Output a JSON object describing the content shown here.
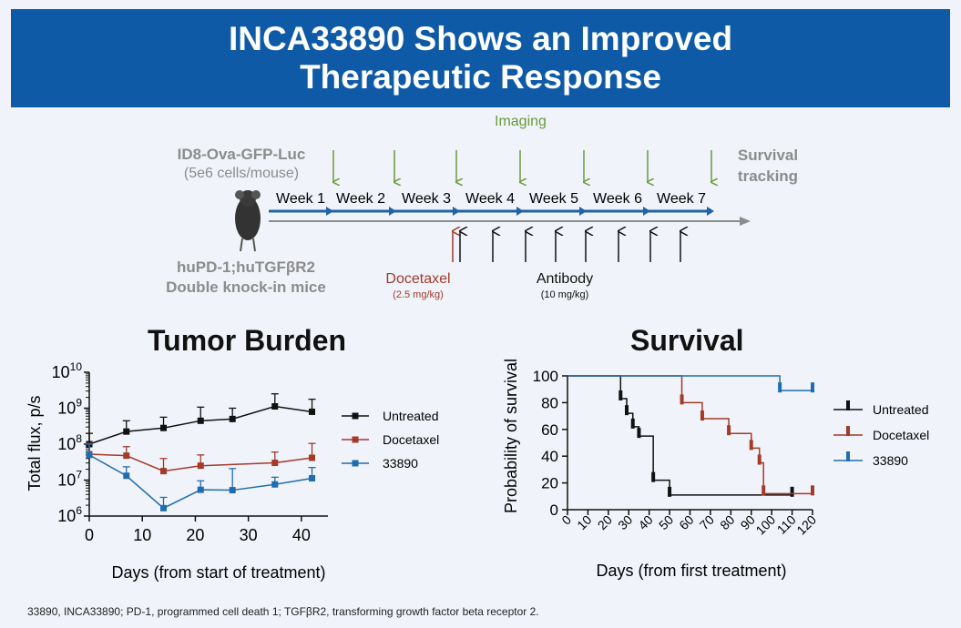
{
  "banner": {
    "line1": "INCA33890 Shows an Improved",
    "line2": "Therapeutic Response"
  },
  "schema": {
    "imaging_label": "Imaging",
    "cell_line": "ID8-Ova-GFP-Luc",
    "cell_dose": "(5e6 cells/mouse)",
    "survival_tracking_1": "Survival",
    "survival_tracking_2": "tracking",
    "mouse_model_1": "huPD-1;huTGFβR2",
    "mouse_model_2": "Double knock-in mice",
    "weeks": [
      "Week 1",
      "Week 2",
      "Week 3",
      "Week 4",
      "Week 5",
      "Week 6",
      "Week 7"
    ],
    "docetaxel_label": "Docetaxel",
    "docetaxel_dose": "(2.5 mg/kg)",
    "antibody_label": "Antibody",
    "antibody_dose": "(10 mg/kg)",
    "colors": {
      "imaging": "#6a9a3a",
      "timeline": "#1f63a8",
      "docetaxel": "#a33a2a",
      "grey": "#8c8c8c"
    }
  },
  "chart_data": [
    {
      "type": "line",
      "title": "Tumor Burden",
      "xlabel": "Days (from start of treatment)",
      "ylabel": "Total flux, p/s",
      "yscale": "log",
      "xlim": [
        0,
        45
      ],
      "ylim_exp": [
        6,
        10
      ],
      "xticks": [
        "0",
        "10",
        "20",
        "30",
        "40"
      ],
      "yticks": [
        {
          "base": "10",
          "exp": "6"
        },
        {
          "base": "10",
          "exp": "7"
        },
        {
          "base": "10",
          "exp": "8"
        },
        {
          "base": "10",
          "exp": "9"
        },
        {
          "base": "10",
          "exp": "10"
        }
      ],
      "legend": [
        "Untreated",
        "Docetaxel",
        "33890"
      ],
      "series": [
        {
          "name": "Untreated",
          "color": "#111111",
          "marker": "square",
          "x": [
            0,
            7,
            14,
            21,
            27,
            35,
            42
          ],
          "y_exp": [
            8.0,
            8.35,
            8.45,
            8.65,
            8.7,
            9.05,
            8.9
          ],
          "err_exp": [
            0.3,
            0.3,
            0.3,
            0.38,
            0.3,
            0.35,
            0.35
          ]
        },
        {
          "name": "Docetaxel",
          "color": "#a33a2a",
          "marker": "square",
          "x": [
            0,
            7,
            14,
            21,
            35,
            42
          ],
          "y_exp": [
            7.72,
            7.68,
            7.25,
            7.4,
            7.48,
            7.62
          ],
          "err_exp": [
            0.3,
            0.25,
            0.35,
            0.3,
            0.3,
            0.4
          ]
        },
        {
          "name": "33890",
          "color": "#1f6db0",
          "marker": "square",
          "x": [
            0,
            7,
            14,
            21,
            27,
            35,
            42
          ],
          "y_exp": [
            7.7,
            7.12,
            6.22,
            6.73,
            6.72,
            6.88,
            7.05
          ],
          "err_exp": [
            0.3,
            0.25,
            0.3,
            0.25,
            0.6,
            0.2,
            0.3
          ]
        }
      ]
    },
    {
      "type": "line",
      "title": "Survival",
      "xlabel": "Days (from first treatment)",
      "ylabel": "Probability of survival",
      "xlim": [
        0,
        120
      ],
      "ylim": [
        0,
        100
      ],
      "xticks": [
        "0",
        "10",
        "20",
        "30",
        "40",
        "50",
        "60",
        "70",
        "80",
        "90",
        "100",
        "110",
        "120"
      ],
      "yticks": [
        "0",
        "20",
        "40",
        "60",
        "80",
        "100"
      ],
      "legend": [
        "Untreated",
        "Docetaxel",
        "33890"
      ],
      "series": [
        {
          "name": "Untreated",
          "color": "#111111",
          "x": [
            0,
            26,
            26,
            29,
            29,
            32,
            32,
            35,
            35,
            42,
            42,
            50,
            50,
            110
          ],
          "y": [
            100,
            100,
            83,
            83,
            72,
            72,
            62,
            62,
            55,
            55,
            22,
            22,
            11,
            11
          ],
          "censor_x": [
            26,
            29,
            32,
            35,
            42,
            50,
            110
          ],
          "censor_y": [
            83,
            72,
            62,
            55,
            22,
            11,
            11
          ]
        },
        {
          "name": "Docetaxel",
          "color": "#a33a2a",
          "x": [
            0,
            56,
            56,
            66,
            66,
            79,
            79,
            90,
            90,
            94,
            94,
            96,
            96,
            120
          ],
          "y": [
            100,
            100,
            80,
            80,
            68,
            68,
            57,
            57,
            46,
            46,
            35,
            35,
            12,
            12
          ],
          "censor_x": [
            56,
            66,
            79,
            90,
            94,
            96,
            120
          ],
          "censor_y": [
            80,
            68,
            57,
            46,
            35,
            12,
            12
          ]
        },
        {
          "name": "33890",
          "color": "#1f6db0",
          "x": [
            0,
            104,
            104,
            120
          ],
          "y": [
            100,
            100,
            89,
            89
          ],
          "censor_x": [
            104,
            120
          ],
          "censor_y": [
            89,
            89
          ]
        }
      ]
    }
  ],
  "footnote": "33890, INCA33890; PD-1, programmed cell death 1; TGFβR2, transforming growth factor beta receptor 2."
}
